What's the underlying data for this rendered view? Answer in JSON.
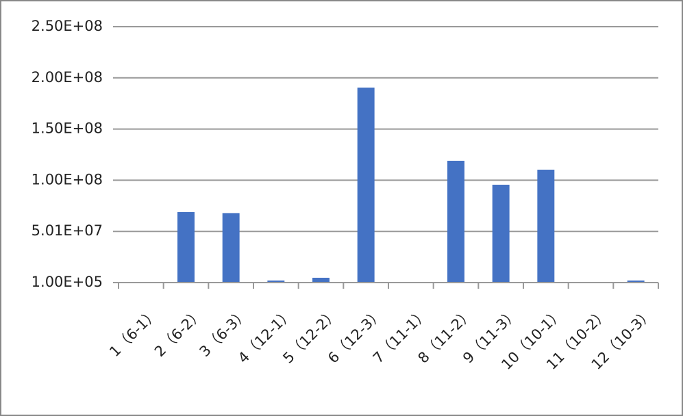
{
  "chart_data": {
    "type": "bar",
    "color": "#4472c4",
    "grid": true,
    "categories": [
      "1（6-1）",
      "2（6-2）",
      "3（6-3）",
      "4（12-1）",
      "5（12-2）",
      "6（12-3）",
      "7（11-1）",
      "8（11-2）",
      "9（11-3）",
      "10（10-1）",
      "11（10-2）",
      "12（10-3）"
    ],
    "values": [
      100000,
      69000000,
      68000000,
      2100000,
      4800000,
      190600000,
      100000,
      119100000,
      95700000,
      110400000,
      100000,
      2100000
    ],
    "ylim": [
      100000,
      250100000
    ],
    "yticks": [
      {
        "value": 100000,
        "label": "1.00E+05"
      },
      {
        "value": 50100000,
        "label": "5.01E+07"
      },
      {
        "value": 100100000,
        "label": "1.00E+08"
      },
      {
        "value": 150100000,
        "label": "1.50E+08"
      },
      {
        "value": 200100000,
        "label": "2.00E+08"
      },
      {
        "value": 250100000,
        "label": "2.50E+08"
      }
    ]
  }
}
